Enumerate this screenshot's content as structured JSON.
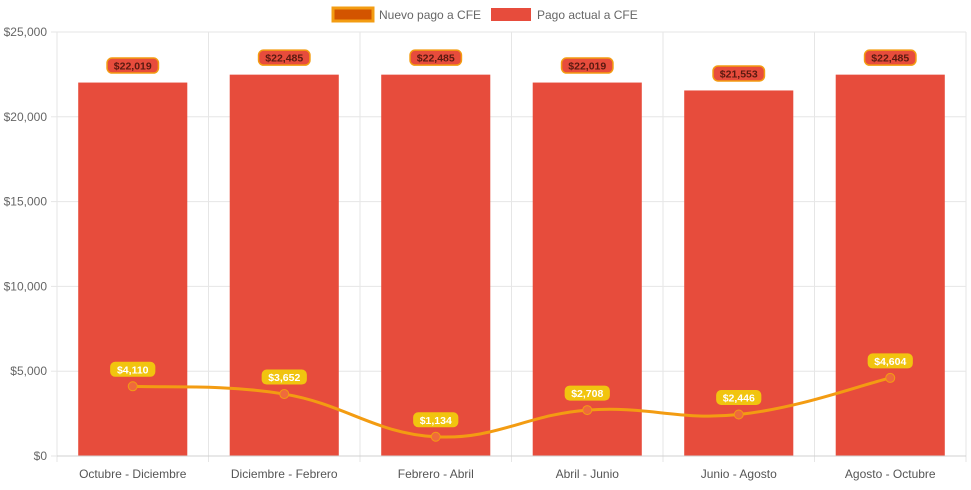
{
  "colors": {
    "bar": "#e74c3c",
    "line": "#f39c12",
    "point": "#ef6a3c",
    "line_label_bg": "#f1c40f",
    "bar_label_bg": "#e74c3c",
    "bar_label_border": "#f39c12",
    "legend_line_fill": "#d35400",
    "legend_line_border": "#f39c12",
    "grid": "#e6e6e6",
    "tick_text": "#666666"
  },
  "chart_data": {
    "type": "bar",
    "categories": [
      "Octubre - Diciembre",
      "Diciembre - Febrero",
      "Febrero - Abril",
      "Abril - Junio",
      "Junio - Agosto",
      "Agosto - Octubre"
    ],
    "series": [
      {
        "name": "Nuevo pago a CFE",
        "type": "line",
        "values": [
          4110,
          3652,
          1134,
          2708,
          2446,
          4604
        ],
        "labels": [
          "$4,110",
          "$3,652",
          "$1,134",
          "$2,708",
          "$2,446",
          "$4,604"
        ]
      },
      {
        "name": "Pago actual a CFE",
        "type": "bar",
        "values": [
          22019,
          22485,
          22485,
          22019,
          21553,
          22485
        ],
        "labels": [
          "$22,019",
          "$22,485",
          "$22,485",
          "$22,019",
          "$21,553",
          "$22,485"
        ]
      }
    ],
    "ylim": [
      0,
      25000
    ],
    "yticks": [
      0,
      5000,
      10000,
      15000,
      20000,
      25000
    ],
    "ytick_labels": [
      "$0",
      "$5,000",
      "$10,000",
      "$15,000",
      "$20,000",
      "$25,000"
    ],
    "grid": true,
    "legend_position": "top-center"
  }
}
